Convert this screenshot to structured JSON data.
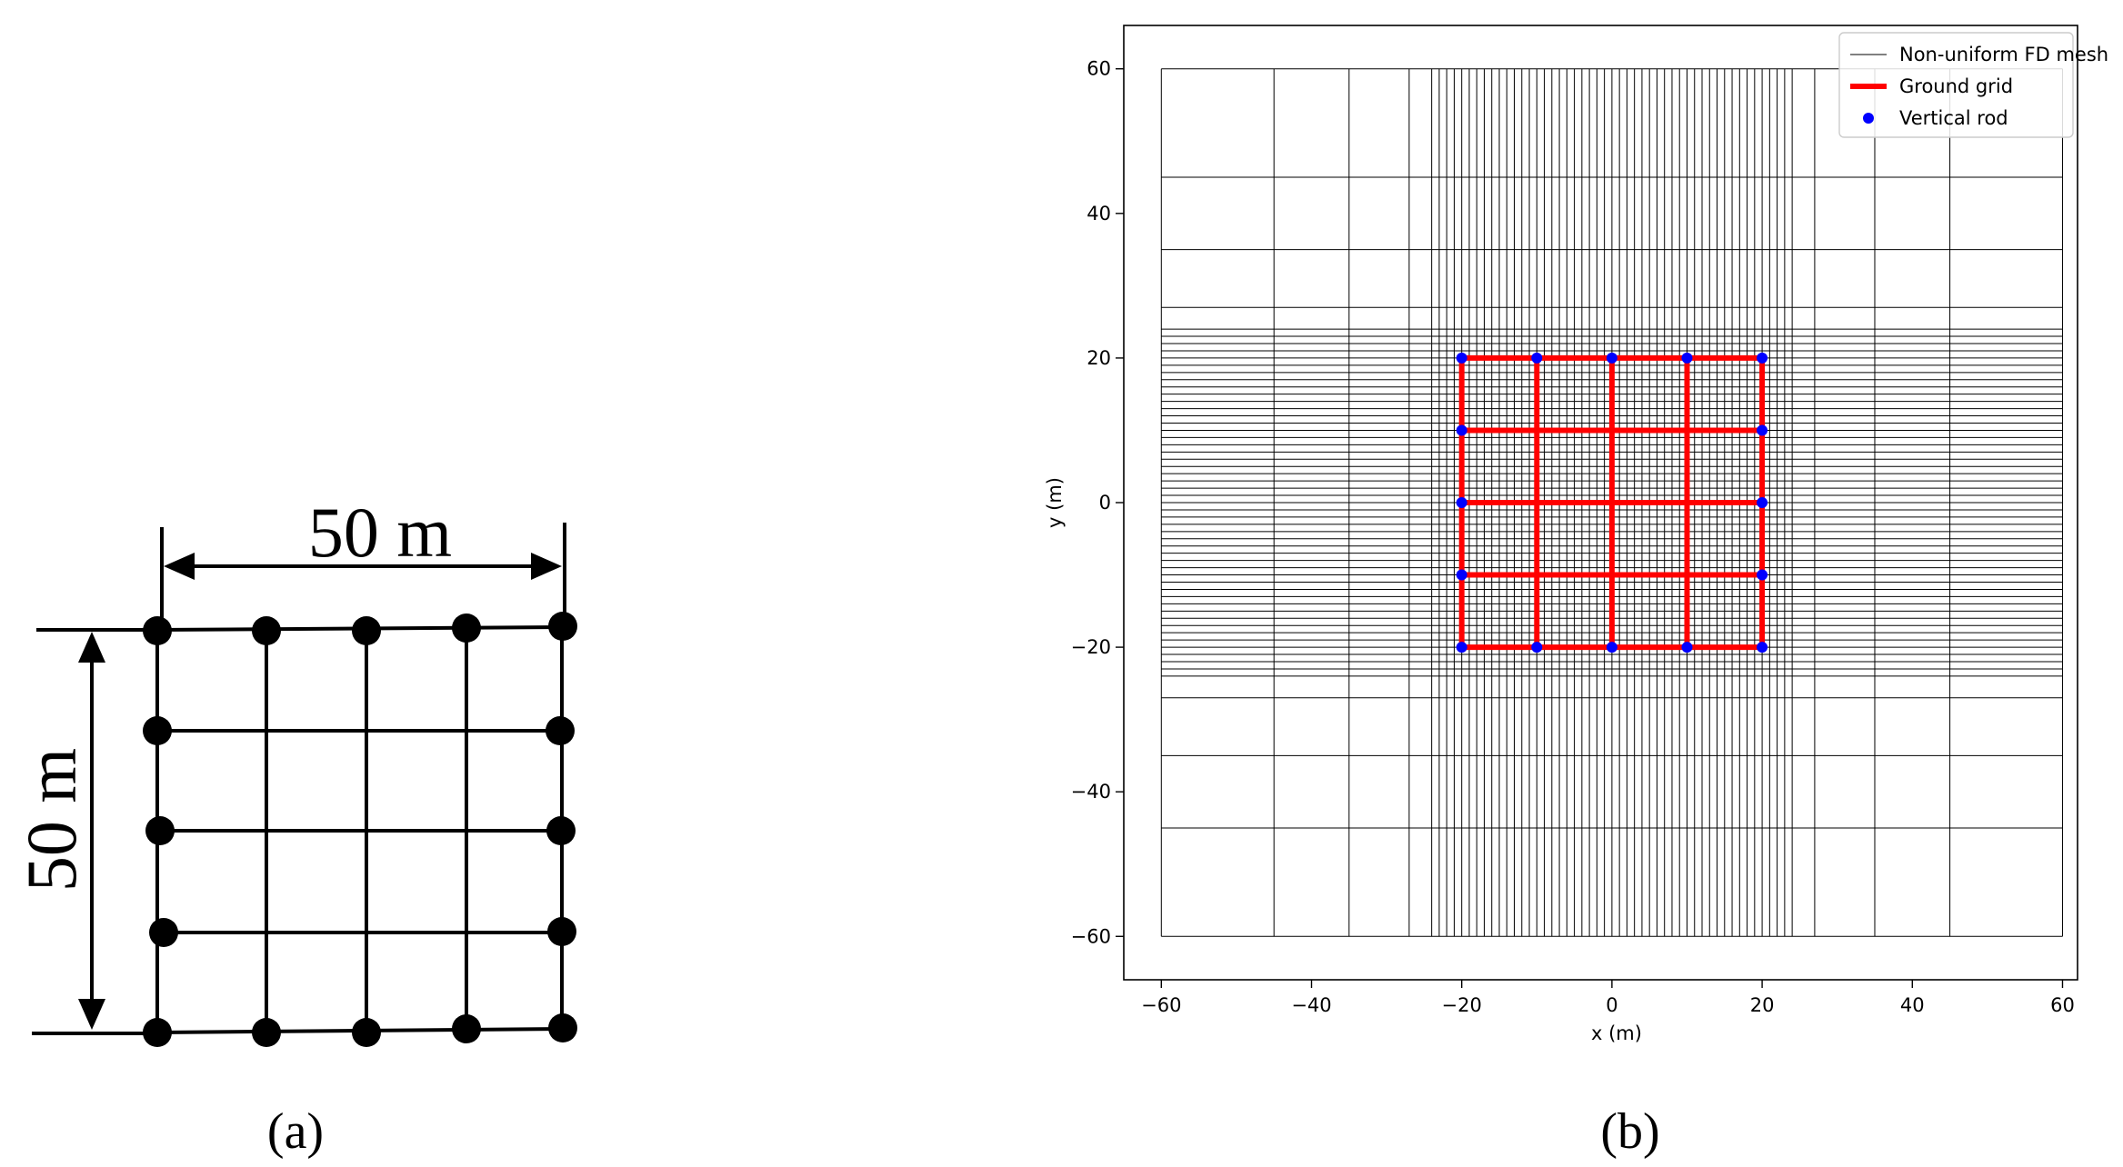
{
  "panel_a": {
    "dim_top": "50 m",
    "dim_left": "50 m",
    "caption": "(a)"
  },
  "panel_b": {
    "caption": "(b)",
    "chart_data": {
      "type": "scatter",
      "xlabel": "x (m)",
      "ylabel": "y (m)",
      "xlim": [
        -65,
        62
      ],
      "ylim": [
        -66,
        66
      ],
      "xticks": [
        -60,
        -40,
        -20,
        0,
        20,
        40,
        60
      ],
      "yticks": [
        -60,
        -40,
        -20,
        0,
        20,
        40,
        60
      ],
      "legend_position": "top-right",
      "legend": [
        "Non-uniform FD mesh",
        "Ground grid",
        "Vertical rod"
      ],
      "mesh": {
        "extent": [
          -60,
          60
        ],
        "coarse_lines": [
          -60,
          -45,
          -35,
          -27,
          27,
          35,
          45,
          60
        ],
        "fine_range": [
          -24,
          24
        ],
        "fine_step": 1,
        "color": "#000000"
      },
      "ground_grid": {
        "lines": [
          -20,
          -10,
          0,
          10,
          20
        ],
        "color": "#ff0000"
      },
      "vertical_rods": {
        "color": "#0000ff",
        "points": [
          [
            -20,
            20
          ],
          [
            -10,
            20
          ],
          [
            0,
            20
          ],
          [
            10,
            20
          ],
          [
            20,
            20
          ],
          [
            -20,
            10
          ],
          [
            20,
            10
          ],
          [
            -20,
            0
          ],
          [
            20,
            0
          ],
          [
            -20,
            -10
          ],
          [
            20,
            -10
          ],
          [
            -20,
            -20
          ],
          [
            -10,
            -20
          ],
          [
            0,
            -20
          ],
          [
            10,
            -20
          ],
          [
            20,
            -20
          ]
        ]
      }
    }
  }
}
